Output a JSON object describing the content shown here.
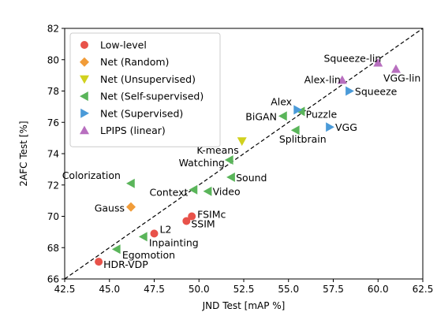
{
  "chart_data": {
    "type": "scatter",
    "xlabel": "JND Test [mAP %]",
    "ylabel": "2AFC Test [%]",
    "xlim": [
      42.5,
      62.5
    ],
    "ylim": [
      66,
      82
    ],
    "xticks": [
      "42.5",
      "45.0",
      "47.5",
      "50.0",
      "52.5",
      "55.0",
      "57.5",
      "60.0",
      "62.5"
    ],
    "yticks": [
      "66",
      "68",
      "70",
      "72",
      "74",
      "76",
      "78",
      "80",
      "82"
    ],
    "reference_line": "dashed diagonal",
    "legend_position": "top-left",
    "series": [
      {
        "name": "Low-level",
        "marker": "circle",
        "color": "#e8524a",
        "points": [
          {
            "label": "HDR-VDP",
            "x": 44.4,
            "y": 67.1
          },
          {
            "label": "L2",
            "x": 47.5,
            "y": 68.9
          },
          {
            "label": "SSIM",
            "x": 49.3,
            "y": 69.7
          },
          {
            "label": "FSIMc",
            "x": 49.6,
            "y": 70.0
          }
        ]
      },
      {
        "name": "Net (Random)",
        "marker": "diamond",
        "color": "#f19c38",
        "points": [
          {
            "label": "Gauss",
            "x": 46.2,
            "y": 70.6
          }
        ]
      },
      {
        "name": "Net (Unsupervised)",
        "marker": "triangle-down",
        "color": "#d1d11e",
        "points": [
          {
            "label": "K-means",
            "x": 52.4,
            "y": 74.8
          }
        ]
      },
      {
        "name": "Net (Self-supervised)",
        "marker": "triangle-left",
        "color": "#5ab55a",
        "points": [
          {
            "label": "Egomotion",
            "x": 45.4,
            "y": 67.9
          },
          {
            "label": "Inpainting",
            "x": 46.9,
            "y": 68.7
          },
          {
            "label": "Context",
            "x": 49.7,
            "y": 71.7
          },
          {
            "label": "Video",
            "x": 50.5,
            "y": 71.6
          },
          {
            "label": "Sound",
            "x": 51.8,
            "y": 72.5
          },
          {
            "label": "Colorization",
            "x": 46.2,
            "y": 72.1
          },
          {
            "label": "Watching",
            "x": 51.7,
            "y": 73.6
          },
          {
            "label": "BiGAN",
            "x": 54.7,
            "y": 76.4
          },
          {
            "label": "Splitbrain",
            "x": 55.4,
            "y": 75.5
          },
          {
            "label": "Puzzle",
            "x": 55.7,
            "y": 76.7
          }
        ]
      },
      {
        "name": "Net (Supervised)",
        "marker": "triangle-right",
        "color": "#4a9ad8",
        "points": [
          {
            "label": "Alex",
            "x": 55.5,
            "y": 76.8
          },
          {
            "label": "VGG",
            "x": 57.3,
            "y": 75.7
          },
          {
            "label": "Squeeze",
            "x": 58.4,
            "y": 78.0
          }
        ]
      },
      {
        "name": "LPIPS (linear)",
        "marker": "triangle-up",
        "color": "#b86fbf",
        "points": [
          {
            "label": "Alex-lin",
            "x": 58.0,
            "y": 78.7
          },
          {
            "label": "Squeeze-lin",
            "x": 60.0,
            "y": 79.8
          },
          {
            "label": "VGG-lin",
            "x": 61.0,
            "y": 79.4
          }
        ]
      }
    ]
  }
}
